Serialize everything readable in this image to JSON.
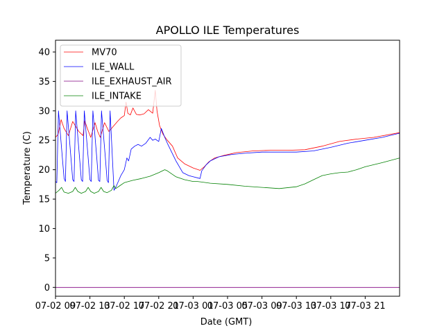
{
  "chart_data": {
    "type": "line",
    "title": "APOLLO ILE Temperatures",
    "xlabel": "Date (GMT)",
    "ylabel": "Temperature (C)",
    "x_unit": "hours since 07-02 08:00",
    "xlim": [
      0,
      40
    ],
    "ylim": [
      -1.5,
      42
    ],
    "yticks": [
      0,
      5,
      10,
      15,
      20,
      25,
      30,
      35,
      40
    ],
    "xticks": [
      {
        "x": 0,
        "label": "07-02 09"
      },
      {
        "x": 4,
        "label": "07-02 13"
      },
      {
        "x": 8,
        "label": "07-02 17"
      },
      {
        "x": 12,
        "label": "07-02 21"
      },
      {
        "x": 16,
        "label": "07-03 01"
      },
      {
        "x": 20,
        "label": "07-03 05"
      },
      {
        "x": 24,
        "label": "07-03 09"
      },
      {
        "x": 28,
        "label": "07-03 13"
      },
      {
        "x": 32,
        "label": "07-03 17"
      },
      {
        "x": 36,
        "label": "07-03 21"
      }
    ],
    "legend_position": "top-left",
    "series": [
      {
        "name": "MV70",
        "color": "#ff0000",
        "x": [
          0,
          0.3,
          0.65,
          1.0,
          1.5,
          2.0,
          2.7,
          3.2,
          3.4,
          3.7,
          4.1,
          4.6,
          4.9,
          5.2,
          5.7,
          6.2,
          6.8,
          7.2,
          7.6,
          8.0,
          8.2,
          8.4,
          8.7,
          9.0,
          9.4,
          9.8,
          10.3,
          10.8,
          11.3,
          11.6,
          11.8,
          12.1,
          12.5,
          13.0,
          13.6,
          14.2,
          15.0,
          16.0,
          16.8,
          17.3,
          17.8,
          18.5,
          19.5,
          21,
          23,
          25,
          27,
          29,
          31,
          33,
          35,
          37,
          40
        ],
        "y": [
          25.5,
          26.0,
          28.5,
          27.0,
          25.8,
          28.2,
          26.5,
          25.8,
          28.3,
          27.0,
          25.5,
          28.0,
          26.5,
          25.5,
          28.0,
          26.5,
          27.5,
          28.2,
          28.8,
          29.2,
          31.5,
          29.6,
          29.3,
          30.5,
          29.4,
          29.3,
          29.5,
          30.2,
          29.6,
          33.5,
          30.0,
          27.5,
          26.0,
          25.0,
          24.0,
          22.0,
          21.0,
          20.3,
          19.9,
          20.5,
          21.3,
          22.0,
          22.4,
          22.9,
          23.2,
          23.3,
          23.3,
          23.4,
          24.0,
          24.8,
          25.2,
          25.5,
          26.3
        ]
      },
      {
        "name": "ILE_WALL",
        "color": "#0000ff",
        "x": [
          0,
          0.15,
          0.35,
          0.8,
          1.0,
          1.15,
          1.35,
          1.8,
          2.0,
          2.15,
          2.35,
          2.8,
          3.0,
          3.15,
          3.35,
          3.8,
          4.0,
          4.15,
          4.35,
          4.8,
          5.0,
          5.15,
          5.35,
          5.8,
          6.0,
          6.15,
          6.35,
          6.8,
          7.0,
          7.3,
          7.6,
          8.0,
          8.3,
          8.5,
          8.8,
          9.2,
          9.6,
          10.0,
          10.5,
          11.0,
          11.3,
          11.6,
          12.0,
          12.3,
          12.7,
          13.0,
          13.5,
          14.0,
          14.8,
          15.5,
          16.0,
          16.8,
          17.0,
          17.5,
          18.0,
          19.0,
          20.5,
          22,
          24,
          26,
          28,
          30,
          32,
          34,
          36,
          38,
          40
        ],
        "y": [
          18.0,
          17.8,
          30.0,
          22.0,
          18.5,
          18.0,
          30.0,
          22.0,
          18.3,
          18.0,
          30.0,
          22.0,
          18.3,
          18.0,
          30.0,
          22.0,
          18.3,
          18.0,
          30.0,
          22.0,
          18.2,
          18.0,
          30.0,
          22.0,
          18.2,
          17.8,
          30.0,
          16.5,
          17.0,
          18.0,
          19.0,
          20.0,
          22.0,
          21.5,
          23.5,
          24.0,
          24.3,
          24.0,
          24.5,
          25.5,
          25.0,
          25.2,
          24.8,
          27.0,
          25.5,
          24.5,
          23.0,
          21.5,
          19.5,
          19.0,
          18.8,
          18.5,
          19.8,
          20.8,
          21.5,
          22.2,
          22.6,
          22.8,
          23.0,
          23.0,
          23.0,
          23.2,
          23.8,
          24.5,
          25.0,
          25.5,
          26.2
        ]
      },
      {
        "name": "ILE_EXHAUST_AIR",
        "color": "#800080",
        "x": [
          0,
          40
        ],
        "y": [
          0,
          0
        ]
      },
      {
        "name": "ILE_INTAKE",
        "color": "#008000",
        "x": [
          0,
          0.4,
          0.7,
          1.0,
          1.5,
          2.0,
          2.3,
          2.6,
          3.0,
          3.5,
          3.8,
          4.1,
          4.5,
          5.0,
          5.3,
          5.6,
          6.0,
          6.5,
          6.8,
          7.0,
          7.5,
          8.0,
          9.0,
          10.0,
          11.0,
          12.0,
          12.7,
          13.0,
          13.5,
          14.0,
          15.0,
          16.0,
          16.5,
          17.0,
          18.0,
          20.0,
          22.0,
          24.0,
          26.0,
          28.0,
          29.0,
          30.0,
          31.0,
          32.0,
          33.0,
          34.0,
          35.0,
          36.0,
          38.0,
          40.0
        ],
        "y": [
          16.0,
          16.5,
          17.0,
          16.2,
          16.0,
          16.3,
          17.0,
          16.3,
          16.0,
          16.3,
          17.0,
          16.3,
          16.0,
          16.3,
          17.0,
          16.3,
          16.1,
          16.5,
          17.3,
          16.8,
          17.3,
          17.8,
          18.2,
          18.5,
          18.9,
          19.5,
          20.0,
          19.8,
          19.3,
          18.8,
          18.3,
          18.0,
          18.0,
          17.9,
          17.7,
          17.5,
          17.2,
          17.0,
          16.8,
          17.1,
          17.6,
          18.3,
          19.0,
          19.3,
          19.5,
          19.6,
          20.0,
          20.5,
          21.2,
          22.0
        ]
      }
    ]
  }
}
